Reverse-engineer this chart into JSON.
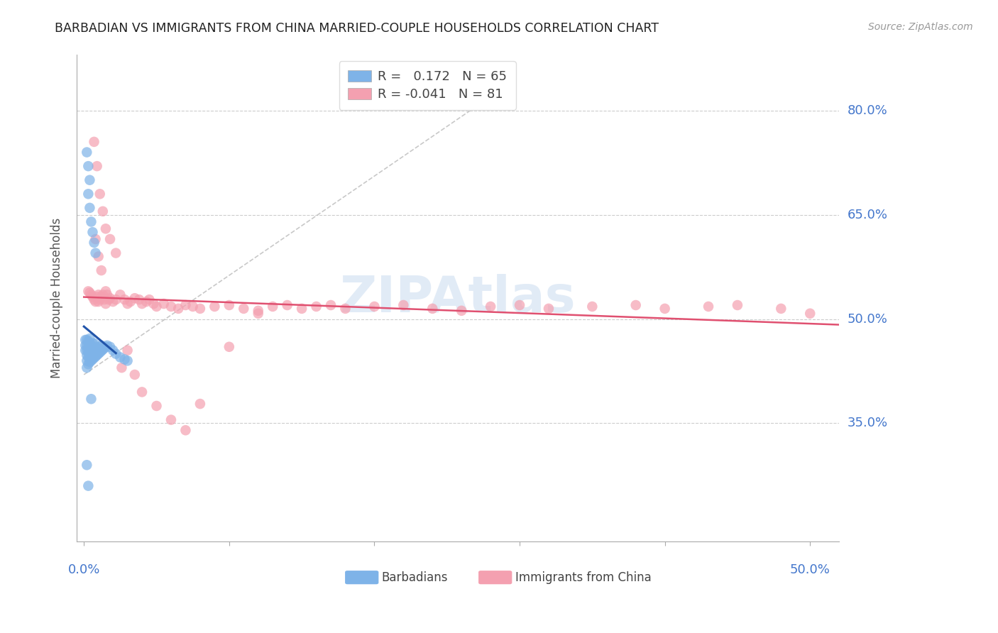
{
  "title": "BARBADIAN VS IMMIGRANTS FROM CHINA MARRIED-COUPLE HOUSEHOLDS CORRELATION CHART",
  "source": "Source: ZipAtlas.com",
  "ylabel": "Married-couple Households",
  "ytick_labels": [
    "80.0%",
    "65.0%",
    "50.0%",
    "35.0%"
  ],
  "ytick_values": [
    0.8,
    0.65,
    0.5,
    0.35
  ],
  "ymin": 0.18,
  "ymax": 0.88,
  "xmin": -0.005,
  "xmax": 0.52,
  "blue_color": "#7EB3E8",
  "pink_color": "#F4A0B0",
  "trend_blue": "#2255AA",
  "trend_pink": "#E05070",
  "watermark_color": "#C5D8EE",
  "blue_x": [
    0.001,
    0.001,
    0.001,
    0.002,
    0.002,
    0.002,
    0.002,
    0.002,
    0.002,
    0.003,
    0.003,
    0.003,
    0.003,
    0.003,
    0.004,
    0.004,
    0.004,
    0.004,
    0.004,
    0.004,
    0.005,
    0.005,
    0.005,
    0.005,
    0.006,
    0.006,
    0.006,
    0.006,
    0.007,
    0.007,
    0.007,
    0.007,
    0.008,
    0.008,
    0.008,
    0.009,
    0.009,
    0.01,
    0.01,
    0.011,
    0.011,
    0.012,
    0.012,
    0.013,
    0.014,
    0.015,
    0.016,
    0.018,
    0.02,
    0.022,
    0.025,
    0.028,
    0.03,
    0.003,
    0.004,
    0.005,
    0.006,
    0.007,
    0.008,
    0.002,
    0.003,
    0.004,
    0.005,
    0.002,
    0.003
  ],
  "blue_y": [
    0.455,
    0.462,
    0.47,
    0.43,
    0.44,
    0.448,
    0.455,
    0.462,
    0.47,
    0.435,
    0.445,
    0.452,
    0.46,
    0.468,
    0.438,
    0.445,
    0.452,
    0.458,
    0.465,
    0.472,
    0.44,
    0.448,
    0.455,
    0.462,
    0.442,
    0.45,
    0.458,
    0.465,
    0.444,
    0.452,
    0.458,
    0.465,
    0.446,
    0.453,
    0.46,
    0.448,
    0.456,
    0.45,
    0.458,
    0.452,
    0.46,
    0.454,
    0.462,
    0.456,
    0.458,
    0.46,
    0.462,
    0.46,
    0.455,
    0.45,
    0.445,
    0.442,
    0.44,
    0.68,
    0.66,
    0.64,
    0.625,
    0.61,
    0.595,
    0.74,
    0.72,
    0.7,
    0.385,
    0.29,
    0.26
  ],
  "pink_x": [
    0.003,
    0.004,
    0.005,
    0.006,
    0.007,
    0.008,
    0.009,
    0.01,
    0.01,
    0.011,
    0.012,
    0.013,
    0.014,
    0.015,
    0.015,
    0.016,
    0.017,
    0.018,
    0.02,
    0.022,
    0.025,
    0.028,
    0.03,
    0.032,
    0.035,
    0.038,
    0.04,
    0.043,
    0.045,
    0.048,
    0.05,
    0.055,
    0.06,
    0.065,
    0.07,
    0.075,
    0.08,
    0.09,
    0.1,
    0.11,
    0.12,
    0.13,
    0.14,
    0.15,
    0.16,
    0.17,
    0.18,
    0.2,
    0.22,
    0.24,
    0.26,
    0.28,
    0.3,
    0.32,
    0.35,
    0.38,
    0.4,
    0.43,
    0.45,
    0.48,
    0.5,
    0.007,
    0.009,
    0.011,
    0.013,
    0.015,
    0.018,
    0.022,
    0.026,
    0.03,
    0.035,
    0.04,
    0.05,
    0.06,
    0.07,
    0.08,
    0.1,
    0.12,
    0.008,
    0.01,
    0.012
  ],
  "pink_y": [
    0.54,
    0.538,
    0.535,
    0.532,
    0.528,
    0.525,
    0.532,
    0.535,
    0.525,
    0.528,
    0.532,
    0.535,
    0.528,
    0.522,
    0.54,
    0.535,
    0.528,
    0.53,
    0.525,
    0.528,
    0.535,
    0.528,
    0.522,
    0.525,
    0.53,
    0.528,
    0.522,
    0.525,
    0.528,
    0.522,
    0.518,
    0.522,
    0.518,
    0.515,
    0.52,
    0.518,
    0.515,
    0.518,
    0.52,
    0.515,
    0.512,
    0.518,
    0.52,
    0.515,
    0.518,
    0.52,
    0.515,
    0.518,
    0.52,
    0.515,
    0.512,
    0.518,
    0.52,
    0.515,
    0.518,
    0.52,
    0.515,
    0.518,
    0.52,
    0.515,
    0.508,
    0.755,
    0.72,
    0.68,
    0.655,
    0.63,
    0.615,
    0.595,
    0.43,
    0.455,
    0.42,
    0.395,
    0.375,
    0.355,
    0.34,
    0.378,
    0.46,
    0.508,
    0.615,
    0.59,
    0.57
  ]
}
